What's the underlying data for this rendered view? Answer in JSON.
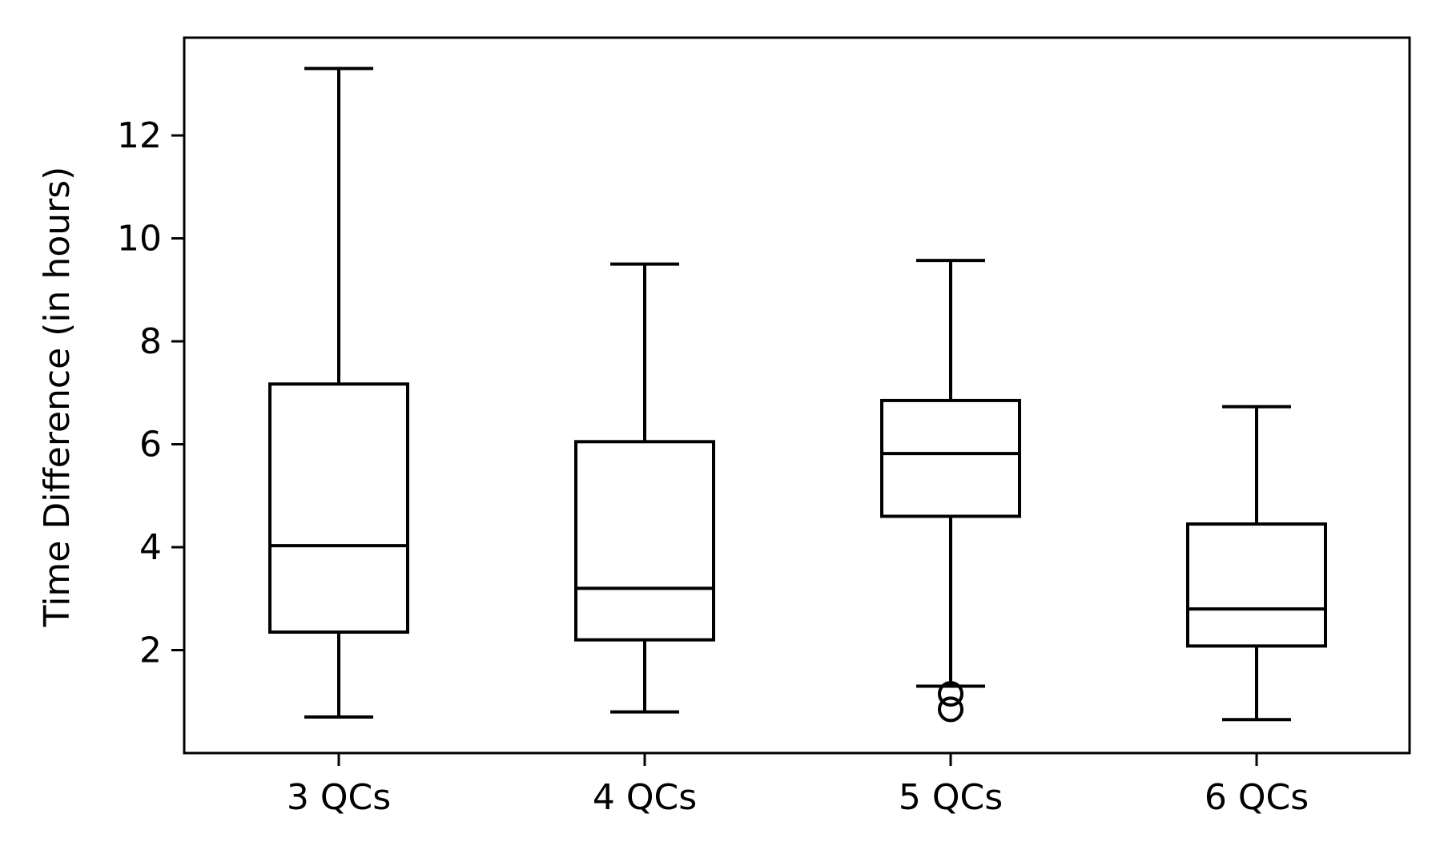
{
  "chart_data": {
    "type": "box",
    "title": "",
    "xlabel": "",
    "ylabel": "Time Difference (in hours)",
    "ylim": [
      0.0,
      13.9
    ],
    "yticks": [
      2,
      4,
      6,
      8,
      10,
      12
    ],
    "ytick_labels": [
      "2",
      "4",
      "6",
      "8",
      "10",
      "12"
    ],
    "grid": false,
    "legend": "none",
    "categories": [
      "3 QCs",
      "4 QCs",
      "5 QCs",
      "6 QCs"
    ],
    "boxes": [
      {
        "category": "3 QCs",
        "whisker_low": 0.7,
        "q1": 2.35,
        "median": 4.03,
        "q3": 7.17,
        "whisker_high": 13.3,
        "outliers": []
      },
      {
        "category": "4 QCs",
        "whisker_low": 0.8,
        "q1": 2.2,
        "median": 3.2,
        "q3": 6.05,
        "whisker_high": 9.5,
        "outliers": []
      },
      {
        "category": "5 QCs",
        "whisker_low": 1.3,
        "q1": 4.6,
        "median": 5.82,
        "q3": 6.85,
        "whisker_high": 9.57,
        "outliers": [
          1.15,
          0.85
        ]
      },
      {
        "category": "6 QCs",
        "whisker_low": 0.65,
        "q1": 2.08,
        "median": 2.8,
        "q3": 4.45,
        "whisker_high": 6.73,
        "outliers": []
      }
    ],
    "colors": {
      "stroke": "#000000",
      "background": "#ffffff"
    }
  }
}
